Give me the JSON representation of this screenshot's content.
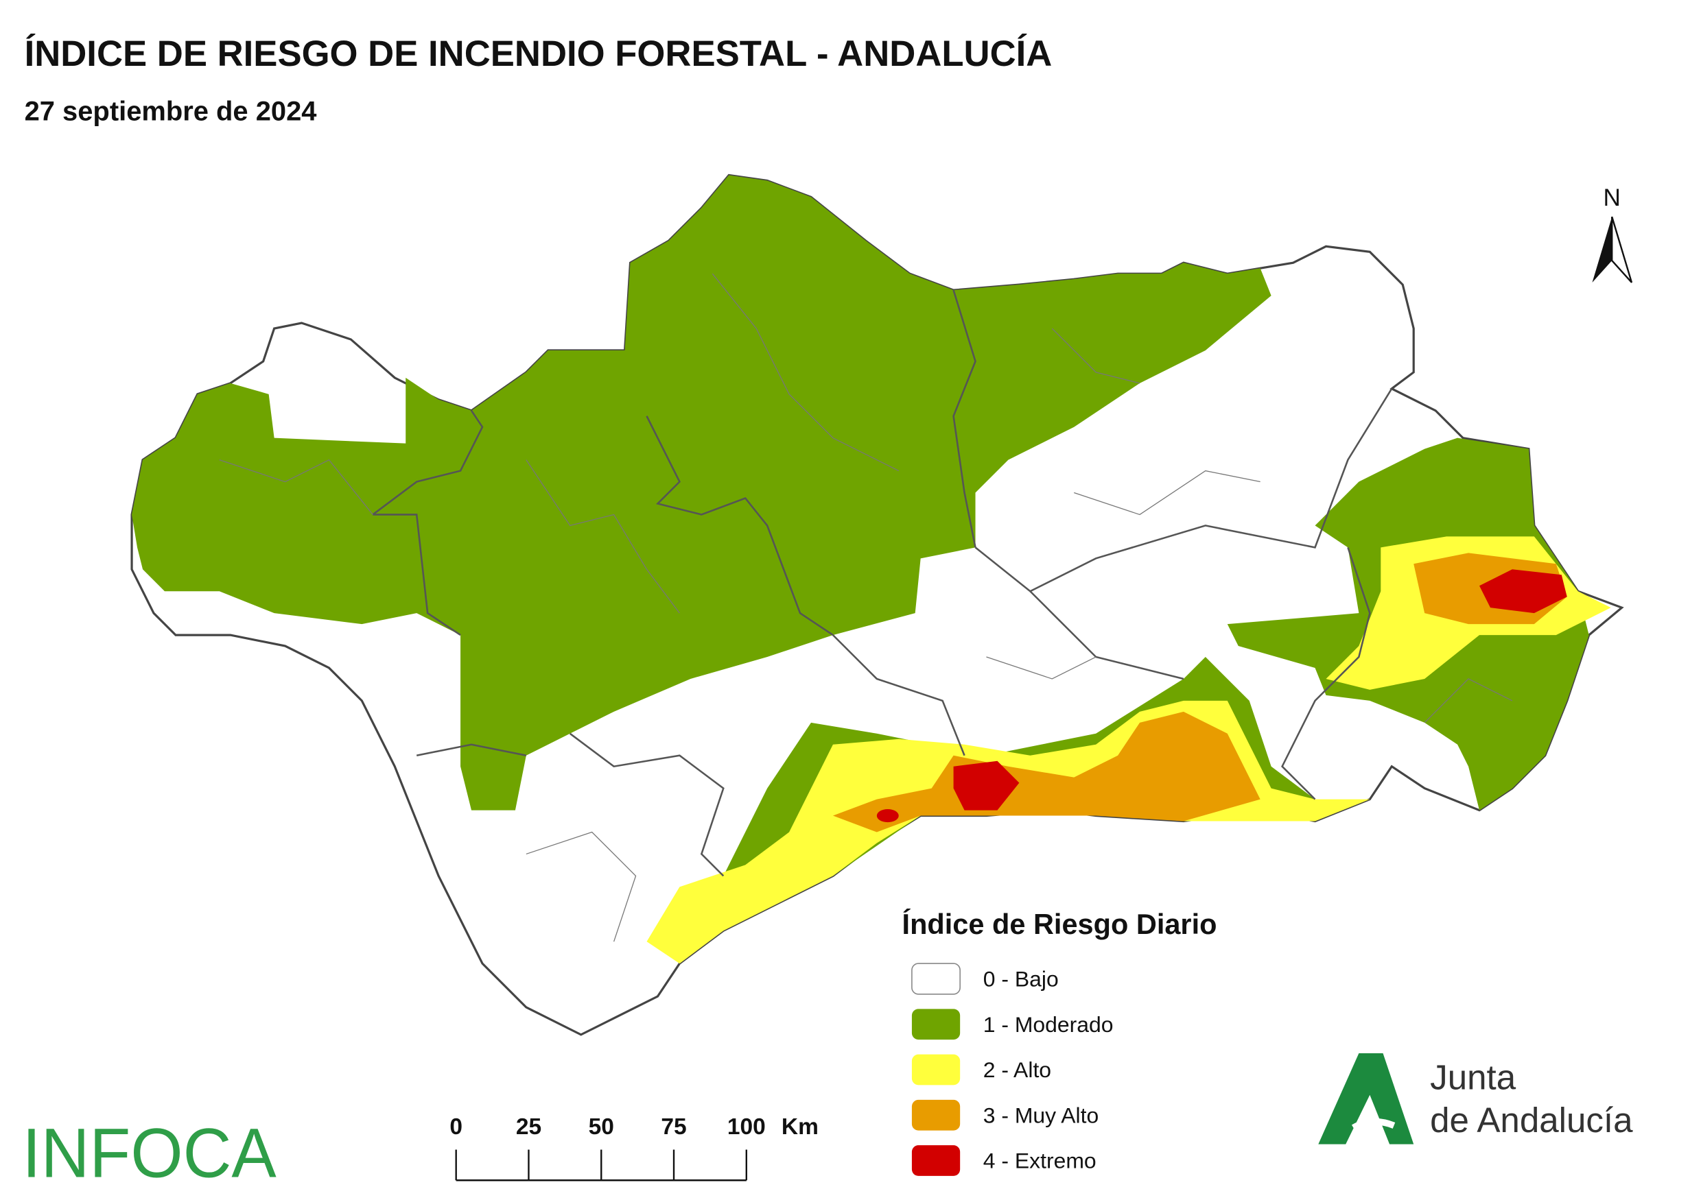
{
  "header": {
    "title": "ÍNDICE DE RIESGO DE INCENDIO FORESTAL - ANDALUCÍA",
    "subtitle": "27 septiembre de 2024"
  },
  "north_arrow": {
    "label": "N"
  },
  "legend": {
    "title": "Índice de Riesgo Diario",
    "items": [
      {
        "label": "0 - Bajo",
        "color": "#ffffff"
      },
      {
        "label": "1 - Moderado",
        "color": "#6fa400"
      },
      {
        "label": "2 - Alto",
        "color": "#ffff3c"
      },
      {
        "label": "3 - Muy Alto",
        "color": "#e89c00"
      },
      {
        "label": "4 - Extremo",
        "color": "#d20000"
      }
    ]
  },
  "scale_bar": {
    "ticks": [
      0,
      25,
      50,
      75,
      100
    ],
    "unit": "Km"
  },
  "logos": {
    "infoca": "INFOCA",
    "junta_line1": "Junta",
    "junta_line2": "de Andalucía"
  }
}
